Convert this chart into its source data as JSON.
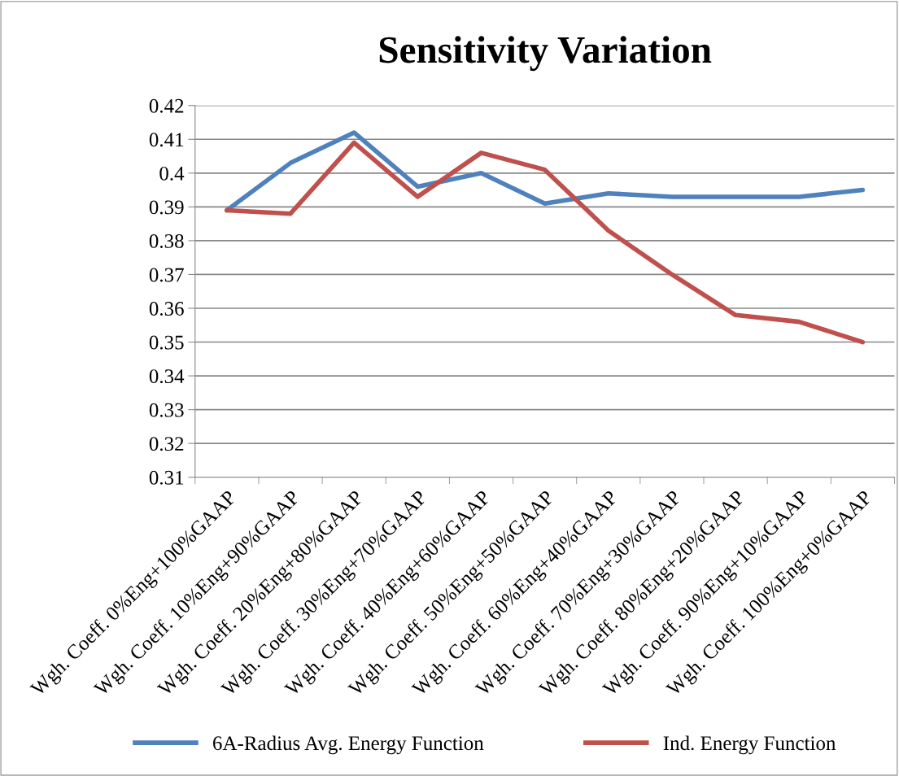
{
  "chart_data": {
    "type": "line",
    "title": "Sensitivity Variation",
    "categories": [
      "Wgh. Coeff. 0%Eng+100%GAAP",
      "Wgh. Coeff. 10%Eng+90%GAAP",
      "Wgh. Coeff. 20%Eng+80%GAAP",
      "Wgh. Coeff. 30%Eng+70%GAAP",
      "Wgh. Coeff. 40%Eng+60%GAAP",
      "Wgh. Coeff. 50%Eng+50%GAAP",
      "Wgh. Coeff. 60%Eng+40%GAAP",
      "Wgh. Coeff. 70%Eng+30%GAAP",
      "Wgh. Coeff. 80%Eng+20%GAAP",
      "Wgh. Coeff. 90%Eng+10%GAAP",
      "Wgh. Coeff. 100%Eng+0%GAAP"
    ],
    "series": [
      {
        "name": "6A-Radius Avg. Energy Function",
        "color": "#4f81bd",
        "values": [
          0.389,
          0.403,
          0.412,
          0.396,
          0.4,
          0.391,
          0.394,
          0.393,
          0.393,
          0.393,
          0.395
        ]
      },
      {
        "name": "Ind. Energy Function",
        "color": "#c0504d",
        "values": [
          0.389,
          0.388,
          0.409,
          0.393,
          0.406,
          0.401,
          0.383,
          0.37,
          0.358,
          0.356,
          0.35
        ]
      }
    ],
    "ylim": [
      0.31,
      0.42
    ],
    "yticks": [
      0.31,
      0.32,
      0.33,
      0.34,
      0.35,
      0.36,
      0.37,
      0.38,
      0.39,
      0.4,
      0.41,
      0.42
    ],
    "grid": "y",
    "legend": "bottom",
    "marker": "none",
    "line_style": "solid"
  }
}
